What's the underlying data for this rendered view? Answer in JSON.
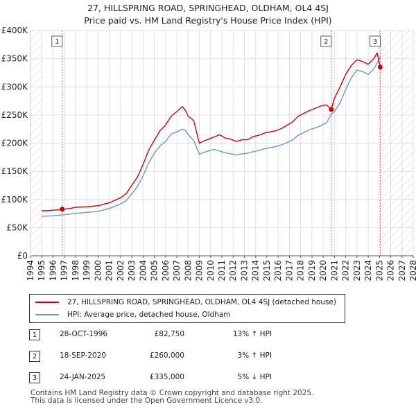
{
  "chart_data": {
    "type": "line",
    "title": "27, HILLSPRING ROAD, SPRINGHEAD, OLDHAM, OL4 4SJ",
    "subtitle": "Price paid vs. HM Land Registry's House Price Index (HPI)",
    "xlim": [
      1994,
      2028
    ],
    "ylim": [
      0,
      400000
    ],
    "x_ticks": [
      1994,
      1995,
      1996,
      1997,
      1998,
      1999,
      2000,
      2001,
      2002,
      2003,
      2004,
      2005,
      2006,
      2007,
      2008,
      2009,
      2010,
      2011,
      2012,
      2013,
      2014,
      2015,
      2016,
      2017,
      2018,
      2019,
      2020,
      2021,
      2022,
      2023,
      2024,
      2025,
      2026,
      2027,
      2028
    ],
    "y_ticks": [
      0,
      50000,
      100000,
      150000,
      200000,
      250000,
      300000,
      350000,
      400000
    ],
    "y_tick_labels": [
      "£0",
      "£50K",
      "£100K",
      "£150K",
      "£200K",
      "£250K",
      "£300K",
      "£350K",
      "£400K"
    ],
    "data_range": [
      1995.0,
      2025.2
    ],
    "series": [
      {
        "name": "27, HILLSPRING ROAD, SPRINGHEAD, OLDHAM, OL4 4SJ (detached house)",
        "color": "#cc0000",
        "x": [
          1995.0,
          1995.5,
          1996.0,
          1996.5,
          1996.82,
          1997.5,
          1998.0,
          1999.0,
          2000.0,
          2001.0,
          2002.0,
          2002.5,
          2003.0,
          2003.5,
          2004.0,
          2004.5,
          2005.0,
          2005.5,
          2006.0,
          2006.5,
          2007.0,
          2007.5,
          2007.8,
          2008.0,
          2008.5,
          2009.0,
          2009.3,
          2009.8,
          2010.3,
          2010.8,
          2011.3,
          2011.8,
          2012.3,
          2012.8,
          2013.3,
          2013.8,
          2014.3,
          2014.8,
          2015.3,
          2015.8,
          2016.3,
          2016.8,
          2017.3,
          2017.8,
          2018.3,
          2018.8,
          2019.3,
          2019.8,
          2020.3,
          2020.72,
          2021.0,
          2021.5,
          2022.0,
          2022.5,
          2023.0,
          2023.5,
          2024.0,
          2024.5,
          2024.8,
          2025.07
        ],
        "values": [
          80000,
          80000,
          81000,
          81500,
          82750,
          84000,
          86000,
          87000,
          89000,
          94000,
          103000,
          110000,
          125000,
          140000,
          162000,
          188000,
          205000,
          222000,
          232000,
          248000,
          256000,
          265000,
          257000,
          248000,
          240000,
          200000,
          203000,
          207000,
          211000,
          215000,
          209000,
          207000,
          203000,
          206000,
          206000,
          212000,
          214000,
          218000,
          220000,
          222000,
          226000,
          232000,
          238000,
          248000,
          253000,
          258000,
          262000,
          266000,
          268000,
          260000,
          280000,
          300000,
          322000,
          338000,
          348000,
          345000,
          340000,
          350000,
          360000,
          335000
        ]
      },
      {
        "name": "HPI: Average price, detached house, Oldham",
        "color": "#6a96c8",
        "x": [
          1995.0,
          1995.5,
          1996.0,
          1996.5,
          1997.0,
          1997.5,
          1998.0,
          1999.0,
          2000.0,
          2001.0,
          2002.0,
          2002.5,
          2003.0,
          2003.5,
          2004.0,
          2004.5,
          2005.0,
          2005.5,
          2006.0,
          2006.5,
          2007.0,
          2007.5,
          2007.8,
          2008.0,
          2008.5,
          2009.0,
          2009.3,
          2009.8,
          2010.3,
          2010.8,
          2011.3,
          2011.8,
          2012.3,
          2012.8,
          2013.3,
          2013.8,
          2014.3,
          2014.8,
          2015.3,
          2015.8,
          2016.3,
          2016.8,
          2017.3,
          2017.8,
          2018.3,
          2018.8,
          2019.3,
          2019.8,
          2020.3,
          2020.72,
          2021.0,
          2021.5,
          2022.0,
          2022.5,
          2023.0,
          2023.5,
          2024.0,
          2024.5,
          2024.8,
          2025.07
        ],
        "values": [
          70000,
          70500,
          71000,
          72000,
          73000,
          74000,
          75500,
          77000,
          79000,
          84000,
          92000,
          98000,
          110000,
          123000,
          142000,
          165000,
          182000,
          195000,
          203000,
          216000,
          220000,
          225000,
          222000,
          215000,
          205000,
          180000,
          183000,
          186000,
          189000,
          186000,
          183000,
          181000,
          179000,
          181000,
          182000,
          185000,
          187000,
          190000,
          192000,
          194000,
          197000,
          201000,
          206000,
          214000,
          219000,
          224000,
          227000,
          231000,
          236000,
          252000,
          256000,
          272000,
          295000,
          316000,
          330000,
          327000,
          322000,
          332000,
          342000,
          353000
        ]
      }
    ],
    "annotations": [
      {
        "id": "1",
        "x": 1996.82,
        "price": 82750
      },
      {
        "id": "2",
        "x": 2020.72,
        "price": 260000
      },
      {
        "id": "3",
        "x": 2025.07,
        "price": 335000
      }
    ]
  },
  "legend": {
    "line1": "27, HILLSPRING ROAD, SPRINGHEAD, OLDHAM, OL4 4SJ (detached house)",
    "line2": "HPI: Average price, detached house, Oldham"
  },
  "transactions": [
    {
      "num": "1",
      "date": "28-OCT-1996",
      "price": "£82,750",
      "hpi": "13% ↑ HPI"
    },
    {
      "num": "2",
      "date": "18-SEP-2020",
      "price": "£260,000",
      "hpi": "3% ↑ HPI"
    },
    {
      "num": "3",
      "date": "24-JAN-2025",
      "price": "£335,000",
      "hpi": "5% ↓ HPI"
    }
  ],
  "footer": {
    "line1": "Contains HM Land Registry data © Crown copyright and database right 2025.",
    "line2": "This data is licensed under the Open Government Licence v3.0."
  }
}
